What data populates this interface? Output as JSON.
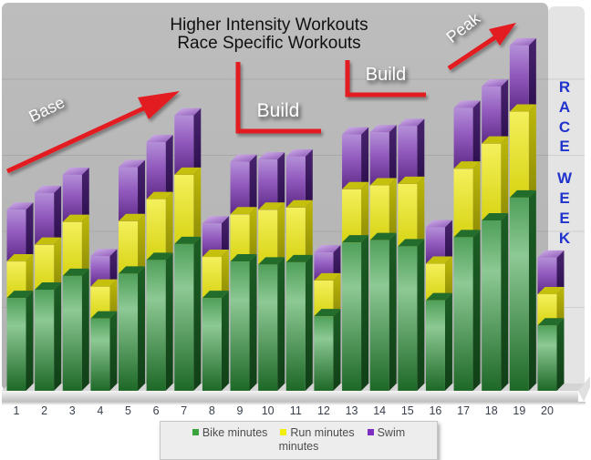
{
  "title": {
    "line1": "Higher Intensity Workouts",
    "line2": "Race Specific Workouts"
  },
  "annotations": {
    "base": "Base",
    "build_left": "Build",
    "build_right": "Build",
    "peak": "Peak",
    "race_week_words": [
      "RACE",
      "WEEK"
    ]
  },
  "x_axis": {
    "categories": [
      "1",
      "2",
      "3",
      "4",
      "5",
      "6",
      "7",
      "8",
      "9",
      "10",
      "11",
      "12",
      "13",
      "14",
      "15",
      "16",
      "17",
      "18",
      "19",
      "20"
    ]
  },
  "legend": {
    "items": [
      {
        "label": "Bike minutes",
        "color": "#3aa33c"
      },
      {
        "label": "Run minutes",
        "color": "#f2ee0e"
      },
      {
        "label": "Swim minutes",
        "color": "#7c2ec0"
      }
    ]
  },
  "colors": {
    "arrow_red": "#e31b20",
    "race_week_blue": "#2033cc",
    "plot_background": "#b9b9b9",
    "race_week_panel": "#e4e4e4",
    "bike_green": "#2e8038",
    "run_yellow": "#e8e31c",
    "swim_purple": "#8a4fb8"
  },
  "chart_data": {
    "type": "bar",
    "stacked": true,
    "title": "",
    "xlabel": "",
    "ylabel": "",
    "categories": [
      1,
      2,
      3,
      4,
      5,
      6,
      7,
      8,
      9,
      10,
      11,
      12,
      13,
      14,
      15,
      16,
      17,
      18,
      19,
      20
    ],
    "series": [
      {
        "name": "Bike minutes",
        "color": "#2e8038",
        "values": [
          122,
          133,
          151,
          95,
          154,
          172,
          193,
          122,
          170,
          166,
          169,
          98,
          195,
          198,
          190,
          119,
          202,
          224,
          254,
          86
        ]
      },
      {
        "name": "Run minutes",
        "color": "#e8e31c",
        "values": [
          48,
          59,
          71,
          42,
          69,
          80,
          91,
          54,
          62,
          72,
          72,
          47,
          70,
          72,
          82,
          48,
          90,
          101,
          113,
          41
        ]
      },
      {
        "name": "Swim minutes",
        "color": "#8a4fb8",
        "values": [
          68,
          68,
          62,
          40,
          71,
          75,
          78,
          44,
          69,
          66,
          67,
          37,
          72,
          70,
          76,
          48,
          80,
          75,
          87,
          48
        ]
      }
    ],
    "ylim": [
      0,
      500
    ],
    "gridlines": [
      100,
      200,
      300,
      400
    ],
    "grid": true,
    "y_axis_labels_visible": false,
    "legend_position": "bottom",
    "annotations": [
      "Base",
      "Build",
      "Build",
      "Peak",
      "Higher Intensity Workouts",
      "Race Specific Workouts",
      "RACE WEEK"
    ]
  }
}
